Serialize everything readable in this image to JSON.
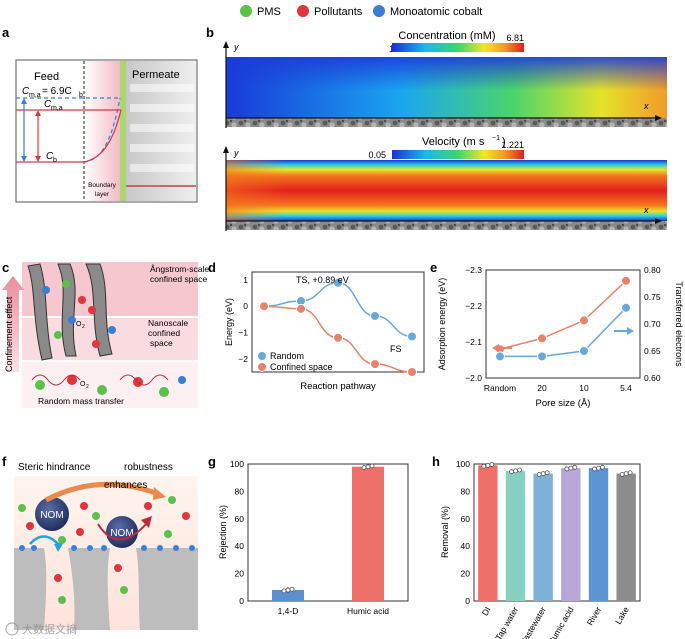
{
  "legend": {
    "items": [
      {
        "label": "PMS",
        "color": "#5cc04a"
      },
      {
        "label": "Pollutants",
        "color": "#e0353c"
      },
      {
        "label": "Monoatomic cobalt",
        "color": "#3a7fd5"
      }
    ]
  },
  "panel_letters": {
    "a": "a",
    "b": "b",
    "c": "c",
    "d": "d",
    "e": "e",
    "f": "f",
    "g": "g",
    "h": "h"
  },
  "panel_a": {
    "feed": "Feed",
    "permeate": "Permeate",
    "c_ma_eq_pre": "C",
    "c_ma_eq_sub": "m,a",
    "c_ma_eq_mid": "= 6.9C",
    "c_ma_eq_sub2": "b",
    "c_ma": "C",
    "c_ma_sub": "m,a",
    "c_b": "C",
    "c_b_sub": "b",
    "boundary_line1": "Boundary",
    "boundary_line2": "layer"
  },
  "panel_b": {
    "concentration": {
      "title": "Concentration (mM)",
      "min": "1",
      "max": "6.81"
    },
    "velocity": {
      "title": "Velocity (m s",
      "title_sup": "−1",
      "title_end": ")",
      "min": "0.05",
      "max": "1.221"
    },
    "axis_y": "y",
    "axis_x": "x"
  },
  "panel_c": {
    "angstrom": "Ångstrom-scale confined space",
    "nanoscale": "Nanoscale confined space",
    "random": "Random mass transfer",
    "confinement": "Confinement effect",
    "o2": "O",
    "o2_sub": "2"
  },
  "chart_data": [
    {
      "panel": "d",
      "type": "line",
      "xlabel": "Reaction pathway",
      "ylabel": "Energy (eV)",
      "ylim": [
        -2.5,
        1.3
      ],
      "yticks": [
        "1",
        "0",
        "−1",
        "−2"
      ],
      "x": [
        0,
        1,
        2,
        3,
        4
      ],
      "series": [
        {
          "name": "Random",
          "color": "#6aa8d8",
          "values": [
            0,
            0.2,
            0.89,
            -0.37,
            -1.15
          ]
        },
        {
          "name": "Confined space",
          "color": "#e8836b",
          "values": [
            0,
            -0.1,
            -1.2,
            -2.2,
            -2.5
          ]
        }
      ],
      "annotations": [
        {
          "text": "TS, +0.89 eV"
        },
        {
          "text": "FS"
        }
      ]
    },
    {
      "panel": "e",
      "type": "line",
      "xlabel": "Pore size (Å)",
      "categories": [
        "Random",
        "20",
        "10",
        "5.4"
      ],
      "ylabel_left": "Adsorption energy (eV)",
      "ylabel_right": "Transferred electrons",
      "ylim_left": [
        -2.0,
        -2.3
      ],
      "ylim_right": [
        0.6,
        0.8
      ],
      "yticks_left": [
        "−2.3",
        "−2.2",
        "−2.1",
        "−2.0"
      ],
      "yticks_right": [
        "0.80",
        "0.75",
        "0.70",
        "0.65",
        "0.60"
      ],
      "series": [
        {
          "name": "Adsorption energy",
          "axis": "left",
          "color": "#e8836b",
          "values": [
            -2.08,
            -2.11,
            -2.16,
            -2.27
          ]
        },
        {
          "name": "Transferred electrons",
          "axis": "right",
          "color": "#6aa8d8",
          "values": [
            0.64,
            0.64,
            0.65,
            0.73
          ]
        }
      ]
    },
    {
      "panel": "g",
      "type": "bar",
      "ylabel": "Rejection (%)",
      "ylim": [
        0,
        100
      ],
      "yticks": [
        "0",
        "20",
        "40",
        "60",
        "80",
        "100"
      ],
      "categories": [
        "1,4-D",
        "Humic acid"
      ],
      "values": [
        8,
        98
      ],
      "colors": [
        "#5b8fcf",
        "#ef6f6a"
      ]
    },
    {
      "panel": "h",
      "type": "bar",
      "ylabel": "Removal (%)",
      "ylim": [
        0,
        100
      ],
      "yticks": [
        "0",
        "20",
        "40",
        "60",
        "80",
        "100"
      ],
      "categories": [
        "DI",
        "Tap water",
        "Wastewater",
        "Humic acid",
        "River",
        "Lake"
      ],
      "values": [
        99,
        95,
        93,
        97,
        97,
        93
      ],
      "colors": [
        "#ef6f6a",
        "#86d0c0",
        "#7fb0d6",
        "#b8a6d8",
        "#5b93d3",
        "#8c8c8c"
      ]
    }
  ],
  "panel_f": {
    "steric": "Steric hindrance",
    "robustness": "robustness",
    "enhances": "enhances",
    "nom1": "NOM",
    "nom2": "NOM"
  },
  "watermark": "大数据文摘"
}
